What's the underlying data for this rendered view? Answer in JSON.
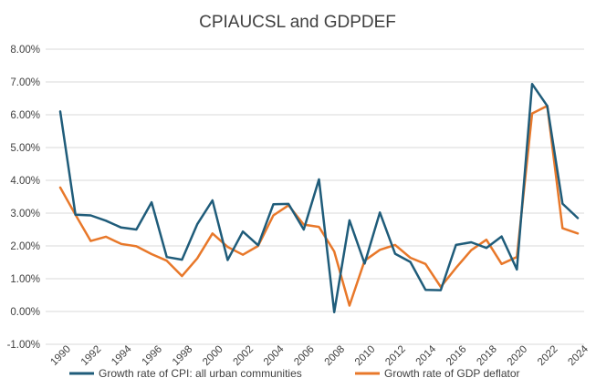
{
  "chart_data": {
    "type": "line",
    "title": "CPIAUCSL and GDPDEF",
    "xlabel": "",
    "ylabel": "",
    "x": [
      1990,
      1991,
      1992,
      1993,
      1994,
      1995,
      1996,
      1997,
      1998,
      1999,
      2000,
      2001,
      2002,
      2003,
      2004,
      2005,
      2006,
      2007,
      2008,
      2009,
      2010,
      2011,
      2012,
      2013,
      2014,
      2015,
      2016,
      2017,
      2018,
      2019,
      2020,
      2021,
      2022,
      2023,
      2024
    ],
    "xticks": [
      "1990",
      "1992",
      "1994",
      "1996",
      "1998",
      "2000",
      "2002",
      "2004",
      "2006",
      "2008",
      "2010",
      "2012",
      "2014",
      "2016",
      "2018",
      "2020",
      "2022",
      "2024"
    ],
    "ylim": [
      -0.01,
      0.08
    ],
    "yticks": [
      -0.01,
      0,
      0.01,
      0.02,
      0.03,
      0.04,
      0.05,
      0.06,
      0.07,
      0.08
    ],
    "ytick_labels": [
      "-1.00%",
      "0.00%",
      "1.00%",
      "2.00%",
      "3.00%",
      "4.00%",
      "5.00%",
      "6.00%",
      "7.00%",
      "8.00%"
    ],
    "grid": true,
    "legend": "bottom",
    "series": [
      {
        "name": "Growth rate of CPI: all urban communities",
        "color": "#1f5c7a",
        "values": [
          0.061,
          0.0295,
          0.0293,
          0.0277,
          0.0256,
          0.025,
          0.0333,
          0.0166,
          0.0158,
          0.0266,
          0.0339,
          0.0157,
          0.0244,
          0.0202,
          0.0327,
          0.0328,
          0.025,
          0.0403,
          -0.0002,
          0.0278,
          0.0146,
          0.0302,
          0.0176,
          0.0151,
          0.0066,
          0.0065,
          0.0203,
          0.0211,
          0.0194,
          0.0229,
          0.0128,
          0.0694,
          0.0627,
          0.0329,
          0.0285
        ]
      },
      {
        "name": "Growth rate of GDP deflator",
        "color": "#e8782a",
        "values": [
          0.0378,
          0.0295,
          0.0215,
          0.0228,
          0.0206,
          0.0199,
          0.0175,
          0.0155,
          0.0108,
          0.0162,
          0.0238,
          0.0197,
          0.0173,
          0.02,
          0.0293,
          0.0324,
          0.0265,
          0.0258,
          0.0183,
          0.0018,
          0.0155,
          0.0188,
          0.0203,
          0.0164,
          0.0145,
          0.0075,
          0.0133,
          0.0187,
          0.0219,
          0.0145,
          0.0166,
          0.0604,
          0.0627,
          0.0254,
          0.0238
        ]
      }
    ]
  }
}
